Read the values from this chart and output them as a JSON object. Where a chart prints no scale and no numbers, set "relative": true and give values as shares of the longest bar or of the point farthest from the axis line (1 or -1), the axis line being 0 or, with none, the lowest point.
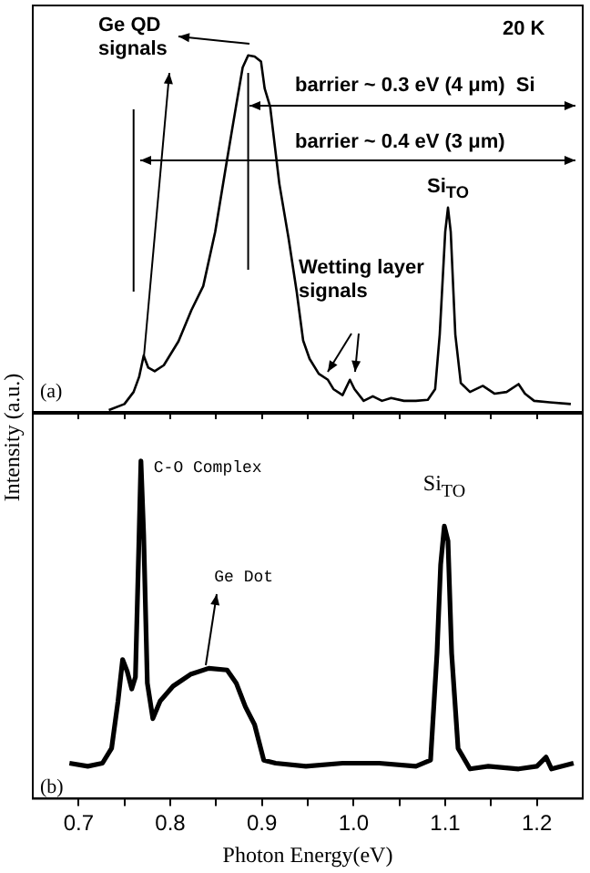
{
  "chart_data": [
    {
      "type": "line",
      "relative": true,
      "marker": "none",
      "tick_labels": false,
      "xlim": [
        0.65,
        1.25
      ],
      "xticks": [
        {
          "value": 0.7,
          "label": null
        },
        {
          "value": 0.75,
          "label": null
        },
        {
          "value": 0.8,
          "label": null
        },
        {
          "value": 0.85,
          "label": null
        },
        {
          "value": 0.9,
          "label": null
        },
        {
          "value": 0.95,
          "label": null
        },
        {
          "value": 1,
          "label": null
        },
        {
          "value": 1.05,
          "label": null
        },
        {
          "value": 1.1,
          "label": null
        },
        {
          "value": 1.15,
          "label": null
        },
        {
          "value": 1.2,
          "label": null
        }
      ],
      "x": [
        0.733,
        0.75,
        0.76,
        0.766,
        0.771,
        0.776,
        0.783,
        0.793,
        0.809,
        0.823,
        0.836,
        0.849,
        0.862,
        0.872,
        0.879,
        0.885,
        0.892,
        0.899,
        0.903,
        0.909,
        0.919,
        0.929,
        0.938,
        0.945,
        0.952,
        0.962,
        0.972,
        0.978,
        0.988,
        0.996,
        1.001,
        1.011,
        1.021,
        1.031,
        1.041,
        1.055,
        1.068,
        1.081,
        1.089,
        1.094,
        1.1,
        1.103,
        1.106,
        1.111,
        1.117,
        1.127,
        1.141,
        1.154,
        1.167,
        1.18,
        1.187,
        1.197,
        1.214,
        1.237
      ],
      "series": [
        {
          "color": "#000000",
          "values": [
            0.005,
            0.022,
            0.056,
            0.098,
            0.158,
            0.124,
            0.114,
            0.131,
            0.198,
            0.285,
            0.353,
            0.505,
            0.708,
            0.861,
            0.966,
            1.0,
            0.997,
            0.983,
            0.907,
            0.856,
            0.64,
            0.488,
            0.336,
            0.2,
            0.149,
            0.107,
            0.09,
            0.064,
            0.047,
            0.09,
            0.064,
            0.031,
            0.044,
            0.031,
            0.039,
            0.031,
            0.031,
            0.034,
            0.064,
            0.217,
            0.505,
            0.573,
            0.505,
            0.217,
            0.081,
            0.056,
            0.073,
            0.051,
            0.056,
            0.078,
            0.051,
            0.031,
            0.027,
            0.022
          ]
        }
      ],
      "ref_lines": [
        {
          "axis": "x",
          "value": 0.76,
          "color": "#000000"
        },
        {
          "axis": "x",
          "value": 0.885,
          "color": "#000000"
        }
      ],
      "annotations": [
        "Ge QD signals",
        "20 K",
        "barrier ~ 0.3 eV (4 μm)  Si",
        "barrier ~ 0.4 eV (3 μm)",
        {
          "text": "Si$_{TO}$",
          "x": 1.103,
          "y": 0.573
        },
        "Wetting layer signals",
        "(a)"
      ]
    },
    {
      "type": "line",
      "relative": true,
      "marker": "none",
      "tick_labels": "x",
      "xlim": [
        0.65,
        1.25
      ],
      "xticks": [
        0.7,
        {
          "value": 0.75,
          "label": null
        },
        0.8,
        {
          "value": 0.85,
          "label": null
        },
        0.9,
        {
          "value": 0.95,
          "label": null
        },
        {
          "value": 1,
          "label": "1.0"
        },
        {
          "value": 1.05,
          "label": null
        },
        1.1,
        {
          "value": 1.15,
          "label": null
        },
        1.2
      ],
      "xlabel": "Photon Energy(eV)",
      "ylabel": "Intensity (a.u.)",
      "x": [
        0.69,
        0.71,
        0.726,
        0.736,
        0.743,
        0.748,
        0.753,
        0.758,
        0.762,
        0.766,
        0.768,
        0.771,
        0.775,
        0.781,
        0.789,
        0.803,
        0.822,
        0.842,
        0.862,
        0.872,
        0.882,
        0.892,
        0.902,
        0.915,
        0.948,
        0.988,
        1.028,
        1.068,
        1.084,
        1.091,
        1.095,
        1.099,
        1.103,
        1.107,
        1.114,
        1.127,
        1.147,
        1.18,
        1.2,
        1.21,
        1.216,
        1.24
      ],
      "series": [
        {
          "color": "#000000",
          "values": [
            0.105,
            0.096,
            0.105,
            0.149,
            0.289,
            0.412,
            0.377,
            0.325,
            0.36,
            0.781,
            1.0,
            0.781,
            0.342,
            0.237,
            0.289,
            0.333,
            0.368,
            0.386,
            0.381,
            0.342,
            0.272,
            0.219,
            0.114,
            0.105,
            0.096,
            0.105,
            0.105,
            0.096,
            0.114,
            0.43,
            0.693,
            0.807,
            0.763,
            0.43,
            0.149,
            0.088,
            0.096,
            0.088,
            0.096,
            0.123,
            0.088,
            0.105
          ]
        }
      ],
      "annotations": [
        {
          "text": "C-O Complex",
          "x": 0.768,
          "y": 1.0
        },
        {
          "text": "Ge Dot",
          "x": 0.842,
          "y": 0.386
        },
        {
          "text": "Si$_{TO}$",
          "x": 1.099,
          "y": 0.807
        },
        "(b)"
      ]
    }
  ]
}
